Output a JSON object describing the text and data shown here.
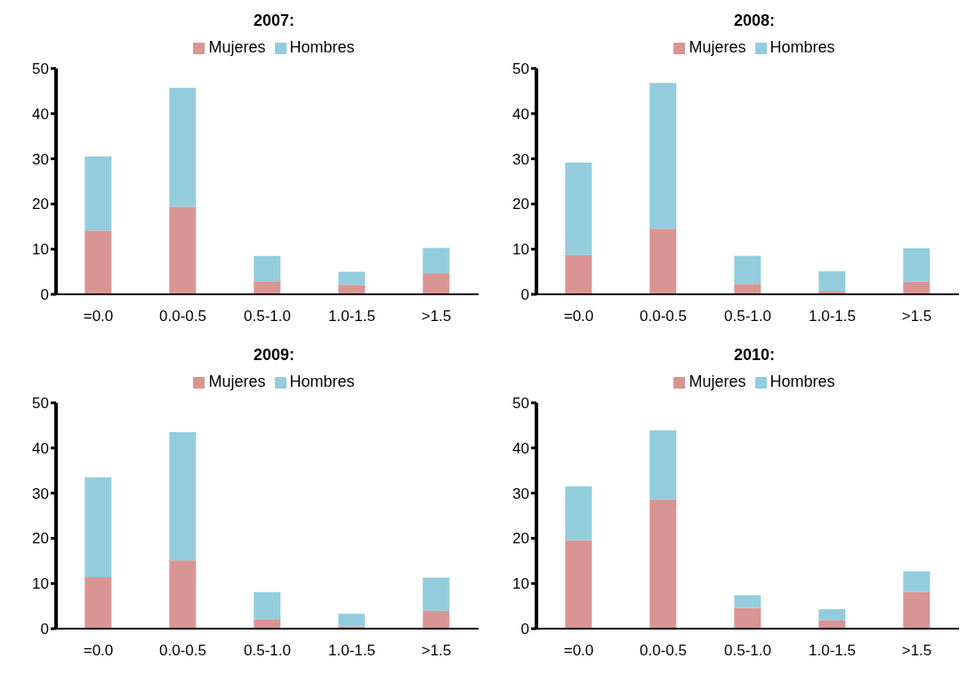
{
  "chart_data": [
    {
      "type": "bar",
      "title": "2007:",
      "stacked": true,
      "legend": "top",
      "grid": false,
      "categories": [
        "=0.0",
        "0.0-0.5",
        "0.5-1.0",
        "1.0-1.5",
        ">1.5"
      ],
      "ylim": [
        0,
        50
      ],
      "yticks": [
        0,
        10,
        20,
        30,
        40,
        50
      ],
      "series": [
        {
          "name": "Mujeres",
          "color": "#d99594",
          "values": [
            14.1,
            19.4,
            2.9,
            2.1,
            4.7
          ]
        },
        {
          "name": "Hombres",
          "color": "#93cddd",
          "values": [
            16.4,
            26.3,
            5.6,
            2.9,
            5.6
          ]
        }
      ]
    },
    {
      "type": "bar",
      "title": "2008:",
      "stacked": true,
      "legend": "top",
      "grid": false,
      "categories": [
        "=0.0",
        "0.0-0.5",
        "0.5-1.0",
        "1.0-1.5",
        ">1.5"
      ],
      "ylim": [
        0,
        50
      ],
      "yticks": [
        0,
        10,
        20,
        30,
        40,
        50
      ],
      "series": [
        {
          "name": "Mujeres",
          "color": "#d99594",
          "values": [
            8.7,
            14.5,
            2.3,
            0.6,
            2.8
          ]
        },
        {
          "name": "Hombres",
          "color": "#93cddd",
          "values": [
            20.5,
            32.3,
            6.2,
            4.5,
            7.4
          ]
        }
      ]
    },
    {
      "type": "bar",
      "title": "2009:",
      "stacked": true,
      "legend": "top",
      "grid": false,
      "categories": [
        "=0.0",
        "0.0-0.5",
        "0.5-1.0",
        "1.0-1.5",
        ">1.5"
      ],
      "ylim": [
        0,
        50
      ],
      "yticks": [
        0,
        10,
        20,
        30,
        40,
        50
      ],
      "series": [
        {
          "name": "Mujeres",
          "color": "#d99594",
          "values": [
            11.4,
            15.1,
            2.1,
            0.5,
            4.0
          ]
        },
        {
          "name": "Hombres",
          "color": "#93cddd",
          "values": [
            22.1,
            28.4,
            6.0,
            2.8,
            7.3
          ]
        }
      ]
    },
    {
      "type": "bar",
      "title": "2010:",
      "stacked": true,
      "legend": "top",
      "grid": false,
      "categories": [
        "=0.0",
        "0.0-0.5",
        "0.5-1.0",
        "1.0-1.5",
        ">1.5"
      ],
      "ylim": [
        0,
        50
      ],
      "yticks": [
        0,
        10,
        20,
        30,
        40,
        50
      ],
      "series": [
        {
          "name": "Mujeres",
          "color": "#d99594",
          "values": [
            19.6,
            28.6,
            4.6,
            1.9,
            8.1
          ]
        },
        {
          "name": "Hombres",
          "color": "#93cddd",
          "values": [
            11.9,
            15.3,
            2.8,
            2.4,
            4.6
          ]
        }
      ]
    }
  ]
}
